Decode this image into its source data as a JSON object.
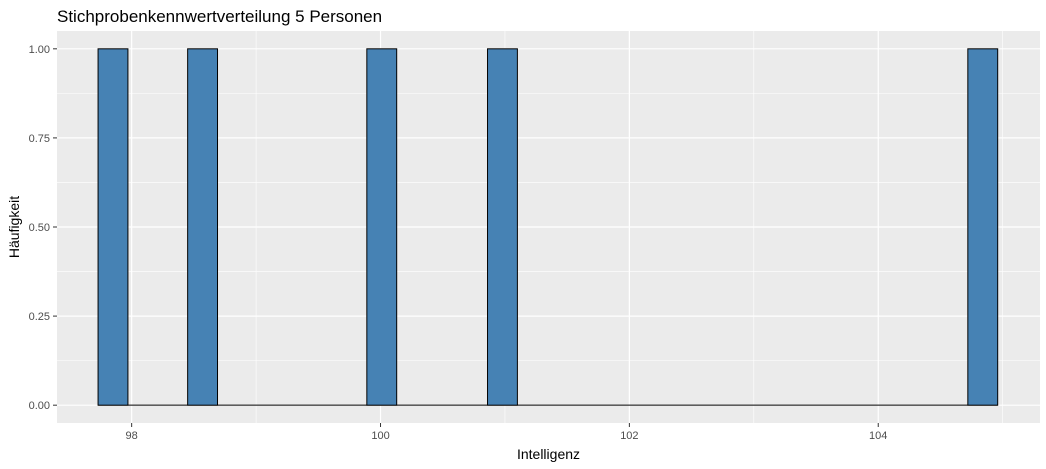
{
  "chart_data": {
    "type": "bar",
    "title": "Stichprobenkennwertverteilung 5 Personen",
    "xlabel": "Intelligenz",
    "ylabel": "Häufigkeit",
    "bin_width": 0.241,
    "bins": [
      {
        "start": 97.73,
        "end": 97.97,
        "count": 1
      },
      {
        "start": 98.45,
        "end": 98.69,
        "count": 1
      },
      {
        "start": 99.89,
        "end": 100.13,
        "count": 1
      },
      {
        "start": 100.86,
        "end": 101.1,
        "count": 1
      },
      {
        "start": 104.72,
        "end": 104.96,
        "count": 1
      }
    ],
    "xlim": [
      97.4,
      105.3
    ],
    "ylim": [
      -0.05,
      1.05
    ],
    "x_ticks": [
      98,
      100,
      102,
      104
    ],
    "x_tick_labels": [
      "98",
      "100",
      "102",
      "104"
    ],
    "y_ticks": [
      0,
      0.25,
      0.5,
      0.75,
      1
    ],
    "y_tick_labels": [
      "0.00",
      "0.25",
      "0.50",
      "0.75",
      "1.00"
    ],
    "grid": true,
    "colors": {
      "fill": "#4682b4",
      "outline": "#000000",
      "panel": "#ebebeb",
      "grid": "#ffffff"
    }
  }
}
